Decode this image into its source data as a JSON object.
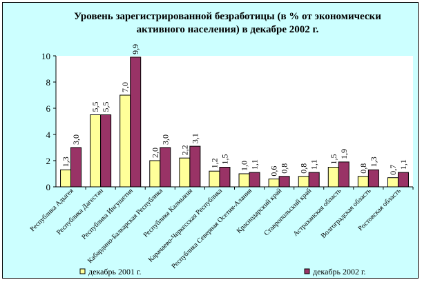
{
  "chart_data": {
    "type": "bar",
    "title_lines": [
      "Уровень зарегистрированной безработицы (в % от экономически",
      "активного населения) в декабре 2002 г."
    ],
    "categories": [
      "Республика Адыгея",
      "Республика Дагестан",
      "Республика Ингушетия",
      "Кабардино-Балкарская Республика",
      "Республика Калмыкия",
      "Карачаево-Черкесская Республика",
      "Республика Северная Осетия-Алания",
      "Краснодарский край",
      "Ставропольский край",
      "Астраханская область",
      "Волгоградская область",
      "Ростовская область"
    ],
    "series": [
      {
        "name": "декабрь 2001 г.",
        "color": "#ffff99",
        "values": [
          1.3,
          5.5,
          7.0,
          2.0,
          2.2,
          1.2,
          1.0,
          0.6,
          0.8,
          1.5,
          0.8,
          0.7
        ],
        "labels": [
          "1,3",
          "5,5",
          "7,0",
          "2,0",
          "2,2",
          "1,2",
          "1,0",
          "0,6",
          "0,8",
          "1,5",
          "0,8",
          "0,7"
        ]
      },
      {
        "name": "декабрь 2002 г.",
        "color": "#993366",
        "values": [
          3.0,
          5.5,
          9.9,
          3.0,
          3.1,
          1.5,
          1.1,
          0.8,
          1.1,
          1.9,
          1.3,
          1.1
        ],
        "labels": [
          "3,0",
          "5,5",
          "9,9",
          "3,0",
          "3,1",
          "1,5",
          "1,1",
          "0,8",
          "1,1",
          "1,9",
          "1,3",
          "1,1"
        ]
      }
    ],
    "yticks": [
      "0",
      "2",
      "4",
      "6",
      "8",
      "10"
    ],
    "ylim": [
      0,
      10
    ],
    "legend_position": "bottom"
  }
}
